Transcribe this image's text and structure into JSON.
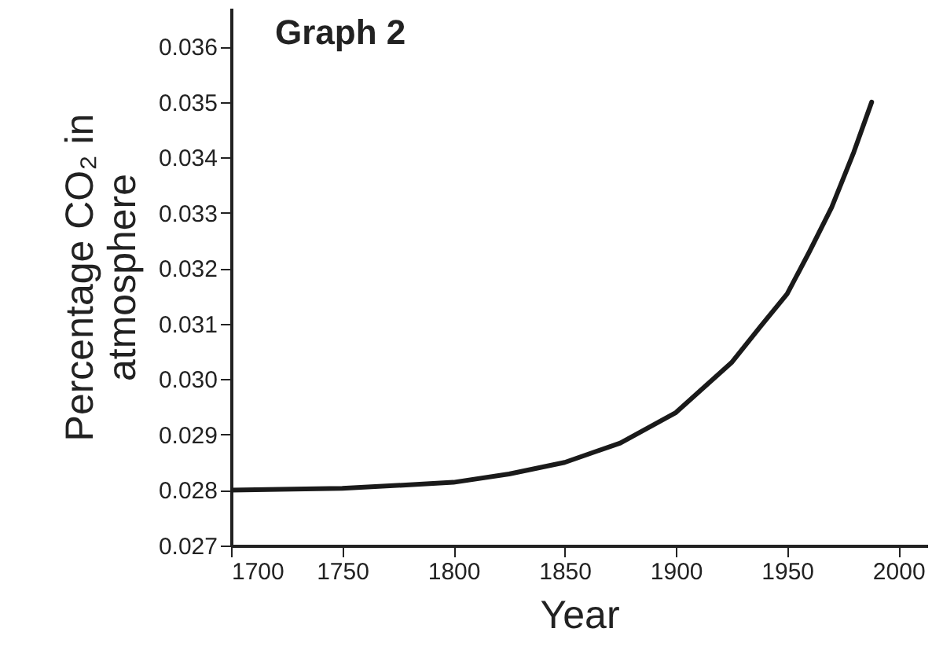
{
  "chart_data": {
    "type": "line",
    "title": "Graph 2",
    "xlabel": "Year",
    "ylabel": "Percentage CO₂ in atmosphere",
    "x": [
      1700,
      1750,
      1800,
      1825,
      1850,
      1875,
      1900,
      1925,
      1938,
      1950,
      1960,
      1970,
      1980,
      1988
    ],
    "series": [
      {
        "color": "#1a1a1a",
        "values": [
          0.028,
          0.02803,
          0.02814,
          0.02829,
          0.0285,
          0.02885,
          0.0294,
          0.0303,
          0.03095,
          0.03154,
          0.0323,
          0.0331,
          0.0341,
          0.035
        ]
      }
    ],
    "xlim": [
      1700,
      2013
    ],
    "xticks": [
      1700,
      1750,
      1800,
      1850,
      1900,
      1950,
      2000
    ],
    "ylim": [
      0.027,
      0.0367
    ],
    "yticks": [
      0.027,
      0.028,
      0.029,
      {
        "value": 0.03,
        "label": "0.030"
      },
      0.031,
      0.032,
      0.033,
      0.034,
      0.035,
      0.036
    ],
    "grid": false,
    "marker": "none",
    "line_style": "solid",
    "legend": false
  }
}
